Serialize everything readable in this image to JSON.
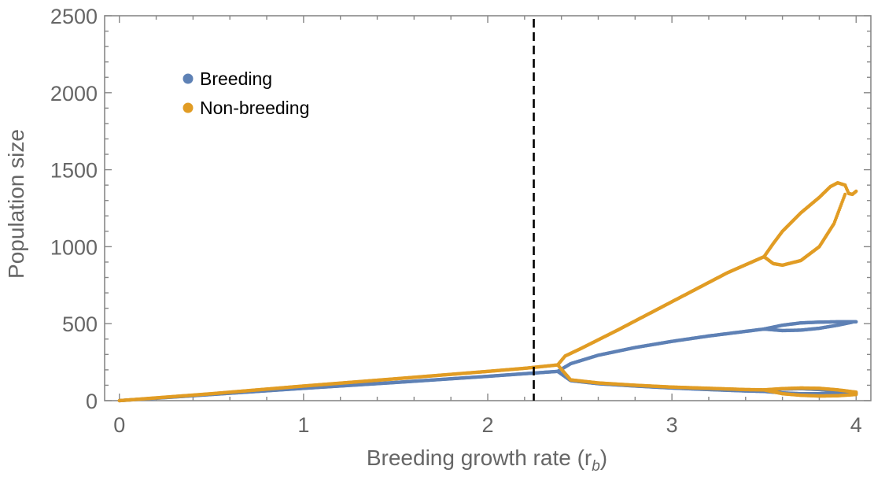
{
  "chart_data": {
    "type": "scatter",
    "xlabel": "Breeding growth rate (r",
    "xlabel_sub": "b",
    "xlabel_close": ")",
    "ylabel": "Population size",
    "xlim": [
      -0.08,
      4.08
    ],
    "ylim": [
      0,
      2500
    ],
    "xticks": [
      0,
      1,
      2,
      3,
      4
    ],
    "xtick_labels": [
      "0",
      "1",
      "2",
      "3",
      "4"
    ],
    "yticks": [
      0,
      500,
      1000,
      1500,
      2000,
      2500
    ],
    "ytick_labels": [
      "0",
      "500",
      "1000",
      "1500",
      "2000",
      "2500"
    ],
    "grid": false,
    "legend_position": "top-left",
    "threshold_line": {
      "x": 2.25,
      "style": "dashed",
      "color": "#000000"
    },
    "series": [
      {
        "name": "Breeding",
        "color": "#5e81b5",
        "branches": [
          {
            "x": [
              0,
              0.5,
              1,
              1.5,
              2,
              2.2,
              2.38
            ],
            "y": [
              0,
              40,
              80,
              118,
              158,
              175,
              190
            ]
          },
          {
            "x": [
              2.38,
              2.45,
              2.6,
              2.8,
              3.0,
              3.2,
              3.4,
              3.5
            ],
            "y": [
              190,
              240,
              295,
              345,
              385,
              420,
              450,
              465
            ]
          },
          {
            "x": [
              2.38,
              2.45,
              2.6,
              2.8,
              3.0,
              3.2,
              3.4,
              3.5
            ],
            "y": [
              190,
              130,
              110,
              95,
              82,
              72,
              63,
              60
            ]
          },
          {
            "x": [
              3.5,
              3.6,
              3.7,
              3.8,
              3.9,
              4.0
            ],
            "y": [
              465,
              490,
              505,
              510,
              512,
              512
            ]
          },
          {
            "x": [
              3.5,
              3.6,
              3.7,
              3.8,
              3.9,
              3.98
            ],
            "y": [
              465,
              455,
              458,
              470,
              490,
              510
            ]
          },
          {
            "x": [
              3.5,
              3.6,
              3.7,
              3.8,
              3.9,
              4.0
            ],
            "y": [
              60,
              75,
              78,
              72,
              62,
              45
            ]
          },
          {
            "x": [
              3.5,
              3.6,
              3.7,
              3.8,
              3.9,
              4.0
            ],
            "y": [
              60,
              50,
              45,
              45,
              48,
              50
            ]
          }
        ]
      },
      {
        "name": "Non-breeding",
        "color": "#e19c24",
        "branches": [
          {
            "x": [
              0,
              0.5,
              1,
              1.5,
              2,
              2.2,
              2.38
            ],
            "y": [
              0,
              45,
              95,
              142,
              190,
              210,
              232
            ]
          },
          {
            "x": [
              2.38,
              2.42,
              2.5,
              2.7,
              2.9,
              3.1,
              3.3,
              3.5
            ],
            "y": [
              232,
              290,
              335,
              455,
              580,
              705,
              830,
              935
            ]
          },
          {
            "x": [
              2.38,
              2.45,
              2.6,
              2.8,
              3.0,
              3.2,
              3.4,
              3.5
            ],
            "y": [
              232,
              135,
              115,
              100,
              88,
              80,
              72,
              70
            ]
          },
          {
            "x": [
              3.5,
              3.55,
              3.6,
              3.7,
              3.8,
              3.86,
              3.9,
              3.94
            ],
            "y": [
              935,
              1020,
              1100,
              1220,
              1320,
              1390,
              1415,
              1400
            ]
          },
          {
            "x": [
              3.5,
              3.55,
              3.6,
              3.7,
              3.8,
              3.88,
              3.94
            ],
            "y": [
              935,
              890,
              880,
              910,
              1000,
              1150,
              1340
            ]
          },
          {
            "x": [
              3.94,
              3.96,
              3.98,
              4.0
            ],
            "y": [
              1400,
              1345,
              1340,
              1360
            ]
          },
          {
            "x": [
              3.5,
              3.6,
              3.7,
              3.8,
              3.9,
              4.0
            ],
            "y": [
              70,
              78,
              82,
              80,
              70,
              55
            ]
          },
          {
            "x": [
              3.5,
              3.6,
              3.7,
              3.8,
              3.9,
              4.0
            ],
            "y": [
              70,
              45,
              35,
              30,
              32,
              40
            ]
          }
        ]
      }
    ]
  }
}
